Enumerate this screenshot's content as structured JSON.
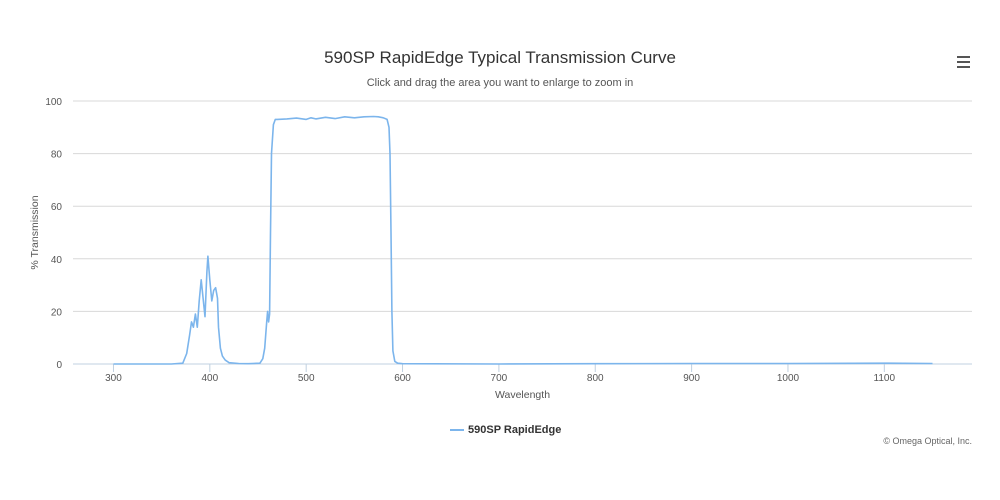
{
  "colors": {
    "series": "#7cb5ec",
    "grid": "#d8d8d8",
    "axis": "#c0d0e0",
    "text": "#555555"
  },
  "header": {
    "title": "590SP RapidEdge Typical Transmission Curve",
    "subtitle": "Click and drag the area you want to enlarge to zoom in"
  },
  "menu": {
    "icon": "hamburger-menu-icon"
  },
  "credit": "© Omega Optical, Inc.",
  "chart_data": {
    "type": "line",
    "title": "590SP RapidEdge Typical Transmission Curve",
    "subtitle": "Click and drag the area you want to enlarge to zoom in",
    "xlabel": "Wavelength",
    "ylabel": "% Transmission",
    "xlim": [
      258,
      1191
    ],
    "ylim": [
      0,
      100
    ],
    "xticks": [
      300,
      400,
      500,
      600,
      700,
      800,
      900,
      1000,
      1100
    ],
    "yticks": [
      0,
      20,
      40,
      60,
      80,
      100
    ],
    "grid": true,
    "legend": "bottom-center",
    "series": [
      {
        "name": "590SP RapidEdge",
        "points": [
          [
            300,
            0
          ],
          [
            360,
            0
          ],
          [
            372,
            0.3
          ],
          [
            376,
            4
          ],
          [
            379,
            11
          ],
          [
            381,
            16
          ],
          [
            383,
            14
          ],
          [
            385,
            19
          ],
          [
            387,
            14
          ],
          [
            389,
            24
          ],
          [
            391,
            32
          ],
          [
            393,
            25
          ],
          [
            395,
            18
          ],
          [
            397,
            35
          ],
          [
            398,
            41
          ],
          [
            400,
            32
          ],
          [
            402,
            24
          ],
          [
            404,
            28
          ],
          [
            406,
            29
          ],
          [
            408,
            25
          ],
          [
            409,
            14
          ],
          [
            411,
            6
          ],
          [
            413,
            3
          ],
          [
            416,
            1.5
          ],
          [
            420,
            0.5
          ],
          [
            430,
            0.2
          ],
          [
            440,
            0.1
          ],
          [
            452,
            0.3
          ],
          [
            455,
            2
          ],
          [
            457,
            6
          ],
          [
            459,
            16
          ],
          [
            460,
            20
          ],
          [
            461,
            16
          ],
          [
            462,
            19
          ],
          [
            463,
            50
          ],
          [
            464,
            80
          ],
          [
            466,
            91
          ],
          [
            468,
            93
          ],
          [
            470,
            93
          ],
          [
            480,
            93.2
          ],
          [
            490,
            93.5
          ],
          [
            500,
            93
          ],
          [
            505,
            93.6
          ],
          [
            510,
            93.2
          ],
          [
            520,
            93.8
          ],
          [
            530,
            93.3
          ],
          [
            540,
            94
          ],
          [
            550,
            93.6
          ],
          [
            560,
            94
          ],
          [
            570,
            94.1
          ],
          [
            575,
            94
          ],
          [
            580,
            93.6
          ],
          [
            584,
            93
          ],
          [
            586,
            90
          ],
          [
            587,
            80
          ],
          [
            588,
            50
          ],
          [
            589,
            20
          ],
          [
            590,
            5
          ],
          [
            592,
            1
          ],
          [
            595,
            0.3
          ],
          [
            600,
            0.1
          ],
          [
            700,
            0
          ],
          [
            800,
            0.1
          ],
          [
            900,
            0.2
          ],
          [
            1000,
            0.2
          ],
          [
            1100,
            0.3
          ],
          [
            1150,
            0.2
          ]
        ]
      }
    ]
  }
}
